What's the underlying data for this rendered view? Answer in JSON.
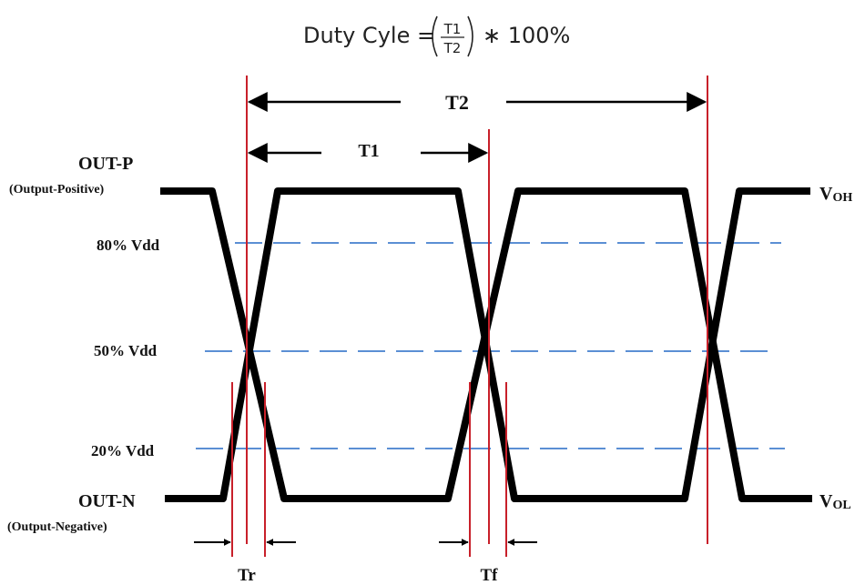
{
  "formula": {
    "lhs": "Duty Cyle =",
    "numerator": "T1",
    "denominator": "T2",
    "rhs": "∗ 100%"
  },
  "labels": {
    "t2": "T2",
    "t1": "T1",
    "out_p": "OUT-P",
    "out_p_desc": "(Output-Positive)",
    "out_n": "OUT-N",
    "out_n_desc": "(Output-Negative)",
    "vdd80": "80% Vdd",
    "vdd50": "50% Vdd",
    "vdd20": "20% Vdd",
    "voh_main": "V",
    "voh_sub": "OH",
    "vol_main": "V",
    "vol_sub": "OL",
    "tr": "Tr",
    "tf": "Tf"
  },
  "colors": {
    "waveform": "#000000",
    "marker": "#c8202a",
    "threshold": "#5b8fd4",
    "text": "#111111"
  }
}
